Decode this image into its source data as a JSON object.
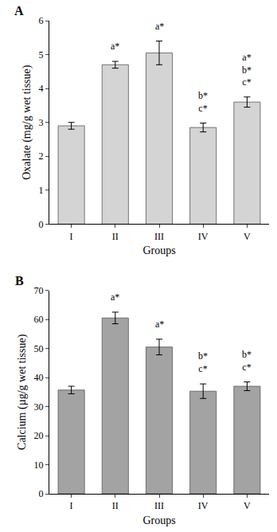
{
  "chart_data": [
    {
      "type": "bar",
      "title": "A",
      "categories": [
        "I",
        "II",
        "III",
        "IV",
        "V"
      ],
      "values": [
        2.9,
        4.7,
        5.05,
        2.85,
        3.6
      ],
      "errors": [
        0.1,
        0.1,
        0.35,
        0.13,
        0.15
      ],
      "color": "#d4d4d4",
      "x_label": "Groups",
      "y_label": "Oxalate (mg/g wet tissue)",
      "ylim": [
        0,
        6
      ],
      "yticks": [
        0,
        1,
        2,
        3,
        4,
        5,
        6
      ],
      "annotations": [
        {
          "category": "II",
          "lines": [
            "a*"
          ]
        },
        {
          "category": "III",
          "lines": [
            "a*"
          ]
        },
        {
          "category": "IV",
          "lines": [
            "b*",
            "c*"
          ]
        },
        {
          "category": "V",
          "lines": [
            "a*",
            "b*",
            "c*"
          ]
        }
      ]
    },
    {
      "type": "bar",
      "title": "B",
      "categories": [
        "I",
        "II",
        "III",
        "IV",
        "V"
      ],
      "values": [
        35.7,
        60.5,
        50.5,
        35.3,
        37
      ],
      "errors": [
        1.3,
        2,
        2.7,
        2.5,
        1.5
      ],
      "color": "#a3a3a3",
      "x_label": "Groups",
      "y_label": "Calcium (µg/g wet tissue)",
      "ylim": [
        0,
        70
      ],
      "yticks": [
        0,
        10,
        20,
        30,
        40,
        50,
        60,
        70
      ],
      "annotations": [
        {
          "category": "II",
          "lines": [
            "a*"
          ]
        },
        {
          "category": "III",
          "lines": [
            "a*"
          ]
        },
        {
          "category": "IV",
          "lines": [
            "b*",
            "c*"
          ]
        },
        {
          "category": "V",
          "lines": [
            "b*",
            "c*"
          ]
        }
      ]
    }
  ]
}
